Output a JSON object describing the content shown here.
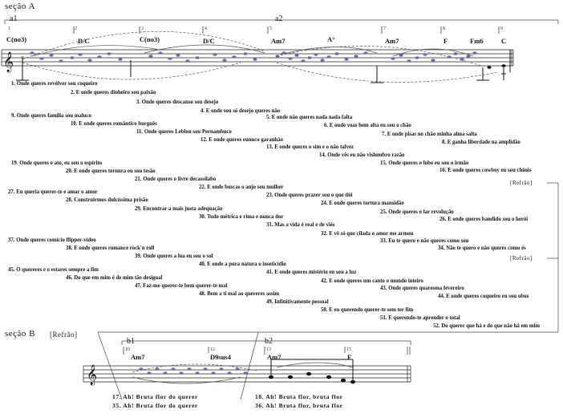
{
  "sections": {
    "a_title": "seção A",
    "a1_label": "a1",
    "a2_label": "a2",
    "b_title": "seção B",
    "b_refrao": "[Refrão]",
    "b1_label": "b1",
    "b2_label": "b2"
  },
  "chords_a": [
    {
      "measure": "1",
      "chord": "C(no3)"
    },
    {
      "measure": "2",
      "chord": "D/C"
    },
    {
      "measure": "3",
      "chord": "C(no3)"
    },
    {
      "measure": "4",
      "chord": "D/C"
    },
    {
      "measure": "5",
      "chord": "Am7"
    },
    {
      "measure": "6",
      "chord": "A°"
    },
    {
      "measure": "7",
      "chord": "Am7"
    },
    {
      "measure": "8",
      "chord": "F"
    },
    {
      "measure": "",
      "chord": "Fm6"
    },
    {
      "measure": "9",
      "chord": "C"
    }
  ],
  "chords_b": [
    {
      "measure": "10",
      "chord": "Am7"
    },
    {
      "measure": "12",
      "chord": "D9sus4"
    },
    {
      "measure": "13",
      "chord": "Am7"
    },
    {
      "measure": "15",
      "chord": "F"
    }
  ],
  "lines": [
    "1. Onde queres revólver sou coqueiro",
    "2. E onde queres dinheiro sou paixão",
    "3. Onde queres descanso sou desejo",
    "4. E onde sou só desejo queres não",
    "5. E onde não queres nada nada falta",
    "6. E onde voas bem alta eu sou o chão",
    "7. E onde pisas no chão minha alma salta",
    "8. E ganha liberdade na amplidão",
    "9. Onde queres família sou maluco",
    "10. E onde queres romântico burguês",
    "11. Onde queres Leblon sou Pernambuco",
    "12. E onde queres eunuco garanhão",
    "13. E onde queres o sim e o não talvez",
    "14. Onde vês eu não vislumbro razão",
    "15. Onde queres o lobo eu sou o irmão",
    "16. E onde queres cowboy eu sou chinês",
    "19. Onde queres o ato, eu sou o espírito",
    "20. E onde queres ternura eu sou tesão",
    "21. Onde queres o livre decassílabo",
    "22. E onde buscas o anjo sou mulher",
    "23. Onde queres prazer sou o que dói",
    "24. E onde queres tortura mansidão",
    "25. Onde queres o lar revolução",
    "26. E onde queres bandido sou o herói",
    "27. Eu queria querer-te e amar o amor",
    "28. Construirmos dulcíssima prisão",
    "29. Encontrar a mais justa adequação",
    "30. Tudo métrica e rima e nunca dor",
    "31. Mas a vida é real e de viés",
    "32. E vê só que cilada o amor me armou",
    "33. Eu te quero e não queres como sou",
    "34. Não te quero e não queres como és",
    "37. Onde queres comício flipper-vídeo",
    "38. E onde queres romance rock'n roll",
    "39. Onde queres a lua eu sou o sol",
    "40. E onde a pura natura o inseticídio",
    "41. E onde queres mistério eu sou a luz",
    "42. E onde queres um canto o mundo inteiro",
    "43. Onde queres quaresma fevereiro",
    "44. E onde queres coqueiro eu sou obus",
    "45. O quereres e o estares sempre a fim",
    "46. Do que em mim é de mim tão desigual",
    "47. Faz-me querer-te bem querer-te mal",
    "48. Bem a ti mal ao quereres assim",
    "49. Infinitivamente pessoal",
    "50. E eu querendo querer-te sem ter fim",
    "51. E querendo-te aprender o total",
    "52. Do querer que há e do que não há em mim"
  ],
  "refrao_markers": [
    "[Refrão]",
    "[Refrão]"
  ],
  "refrain_lyrics": [
    "17. Ah! Bruta flor do querer",
    "35. Ah! Bruta flor do querer",
    "18. Ah! Bruta flor, bruta flor",
    "36. Ah! Bruta flor, bruta flor"
  ],
  "colors": {
    "ink": "#111111",
    "notes": "#6a63c9",
    "staff": "#222222"
  }
}
